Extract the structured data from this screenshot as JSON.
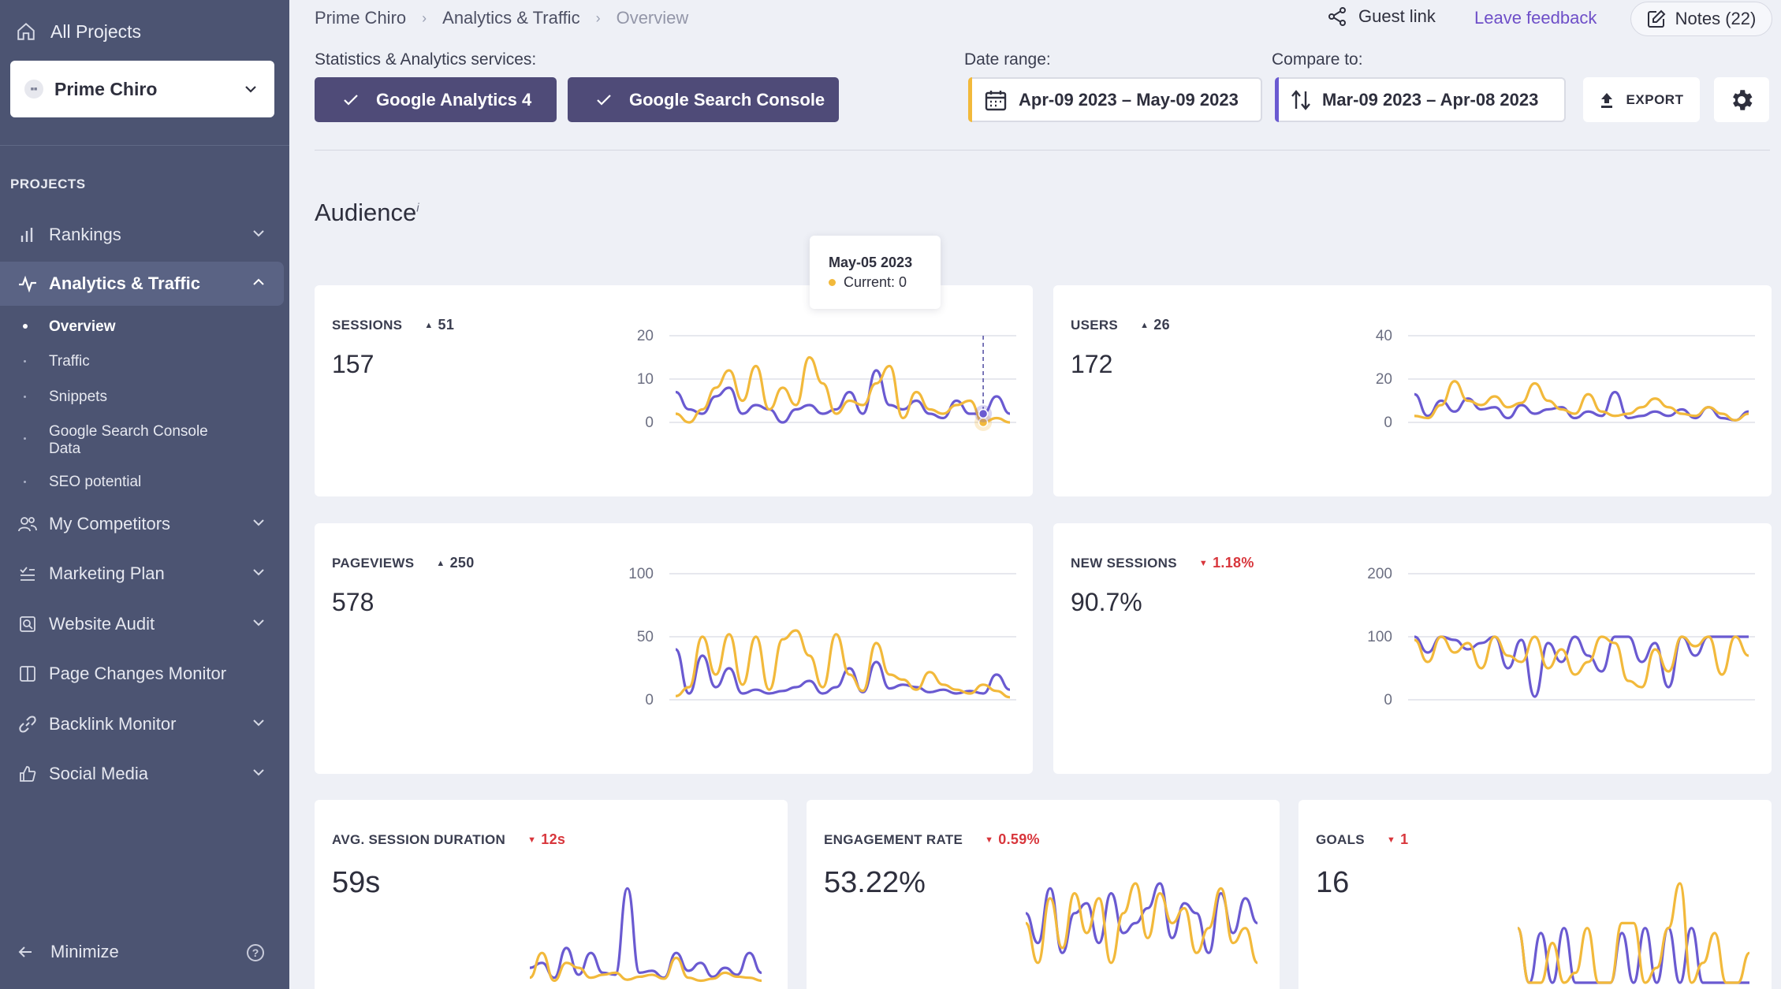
{
  "sidebar": {
    "all_projects": "All Projects",
    "project": "Prime Chiro",
    "section_label": "PROJECTS",
    "nav": {
      "rankings": "Rankings",
      "analytics": "Analytics & Traffic",
      "competitors": "My Competitors",
      "marketing": "Marketing Plan",
      "audit": "Website Audit",
      "page_changes": "Page Changes Monitor",
      "backlinks": "Backlink Monitor",
      "social": "Social Media"
    },
    "sub": {
      "overview": "Overview",
      "traffic": "Traffic",
      "snippets": "Snippets",
      "gsc_line1": "Google Search Console",
      "gsc_line2": "Data",
      "seo": "SEO potential"
    },
    "minimize": "Minimize"
  },
  "header": {
    "breadcrumb": [
      "Prime Chiro",
      "Analytics & Traffic",
      "Overview"
    ],
    "guest_link": "Guest link",
    "feedback": "Leave feedback",
    "notes": "Notes (22)"
  },
  "toolbar": {
    "services_label": "Statistics & Analytics services:",
    "service1": "Google Analytics 4",
    "service2": "Google Search Console",
    "date_label": "Date range:",
    "date_value": "Apr-09 2023 – May-09 2023",
    "compare_label": "Compare to:",
    "compare_value": "Mar-09 2023 – Apr-08 2023",
    "export": "EXPORT"
  },
  "section_title": "Audience",
  "section_info": "i",
  "tooltip": {
    "date": "May-05 2023",
    "current": "Current:  0"
  },
  "colors": {
    "current": "#f2b93b",
    "previous": "#6a5ad1",
    "sidebar": "#4c5472",
    "accent": "#4f4b78"
  },
  "cards": {
    "sessions": {
      "title": "SESSIONS",
      "delta": "51",
      "value": "157"
    },
    "users": {
      "title": "USERS",
      "delta": "26",
      "value": "172"
    },
    "pageviews": {
      "title": "PAGEVIEWS",
      "delta": "250",
      "value": "578"
    },
    "new_sessions": {
      "title": "NEW SESSIONS",
      "delta": "1.18%",
      "value": "90.7%"
    },
    "avg_duration": {
      "title": "AVG. SESSION DURATION",
      "delta": "12s",
      "value": "59s"
    },
    "engagement": {
      "title": "ENGAGEMENT RATE",
      "delta": "0.59%",
      "value": "53.22%"
    },
    "goals": {
      "title": "GOALS",
      "delta": "1",
      "value": "16"
    }
  },
  "chart_data": [
    {
      "id": "sessions",
      "type": "line",
      "y_ticks": [
        "20",
        "10",
        "0"
      ],
      "ylim": [
        0,
        20
      ],
      "hover_marker": 23,
      "series": [
        {
          "role": "current",
          "values": [
            2,
            0,
            3,
            8,
            12,
            5,
            13,
            3,
            8,
            4,
            15,
            9,
            2,
            5,
            4,
            9,
            13,
            1,
            7,
            3,
            2,
            4,
            5,
            0,
            1,
            0
          ]
        },
        {
          "role": "previous",
          "values": [
            7,
            3,
            2,
            6,
            8,
            2,
            4,
            3,
            0,
            3,
            4,
            2,
            3,
            7,
            2,
            12,
            4,
            3,
            5,
            2,
            1,
            5,
            2,
            2,
            6,
            2
          ]
        }
      ]
    },
    {
      "id": "users",
      "type": "line",
      "y_ticks": [
        "40",
        "20",
        "0"
      ],
      "ylim": [
        0,
        40
      ],
      "series": [
        {
          "role": "current",
          "values": [
            3,
            2,
            8,
            19,
            10,
            8,
            12,
            7,
            9,
            18,
            10,
            6,
            4,
            13,
            5,
            3,
            4,
            7,
            11,
            7,
            4,
            3,
            7,
            4,
            1,
            4
          ]
        },
        {
          "role": "previous",
          "values": [
            13,
            3,
            10,
            5,
            11,
            6,
            7,
            2,
            8,
            4,
            6,
            7,
            2,
            5,
            3,
            14,
            2,
            3,
            5,
            3,
            6,
            2,
            7,
            2,
            1,
            5
          ]
        }
      ]
    },
    {
      "id": "pageviews",
      "type": "line",
      "y_ticks": [
        "100",
        "50",
        "0"
      ],
      "ylim": [
        0,
        100
      ],
      "series": [
        {
          "role": "current",
          "values": [
            3,
            10,
            50,
            20,
            52,
            12,
            50,
            8,
            48,
            55,
            35,
            10,
            52,
            20,
            7,
            45,
            20,
            16,
            8,
            22,
            12,
            8,
            5,
            12,
            7,
            2
          ]
        },
        {
          "role": "previous",
          "values": [
            40,
            5,
            35,
            10,
            25,
            5,
            8,
            5,
            7,
            10,
            15,
            5,
            10,
            25,
            6,
            30,
            9,
            12,
            10,
            6,
            8,
            5,
            7,
            5,
            20,
            8
          ]
        }
      ]
    },
    {
      "id": "new_sessions",
      "type": "line",
      "y_ticks": [
        "200",
        "100",
        "0"
      ],
      "ylim": [
        0,
        200
      ],
      "series": [
        {
          "role": "current",
          "values": [
            95,
            60,
            100,
            75,
            90,
            50,
            100,
            70,
            60,
            100,
            50,
            80,
            40,
            60,
            100,
            90,
            30,
            20,
            80,
            45,
            100,
            85,
            100,
            40,
            100,
            70
          ]
        },
        {
          "role": "previous",
          "values": [
            100,
            75,
            100,
            95,
            80,
            90,
            100,
            50,
            95,
            5,
            90,
            60,
            100,
            70,
            45,
            100,
            100,
            60,
            90,
            20,
            100,
            70,
            100,
            100,
            100,
            100
          ]
        }
      ]
    },
    {
      "id": "avg_duration",
      "type": "line",
      "series": [
        {
          "role": "current",
          "values": [
            5,
            30,
            2,
            20,
            15,
            5,
            8,
            10,
            3,
            6,
            8,
            4,
            25,
            5,
            2,
            4,
            10,
            6,
            5,
            2
          ]
        },
        {
          "role": "previous",
          "values": [
            15,
            20,
            5,
            35,
            8,
            30,
            10,
            8,
            95,
            10,
            12,
            5,
            30,
            12,
            20,
            6,
            15,
            8,
            30,
            10
          ]
        }
      ]
    },
    {
      "id": "engagement",
      "type": "line",
      "series": [
        {
          "role": "current",
          "values": [
            60,
            20,
            85,
            35,
            90,
            50,
            85,
            20,
            70,
            100,
            45,
            90,
            60,
            75,
            30,
            55,
            95,
            40,
            55,
            20
          ]
        },
        {
          "role": "previous",
          "values": [
            70,
            40,
            95,
            30,
            70,
            80,
            40,
            90,
            50,
            60,
            75,
            100,
            45,
            80,
            70,
            30,
            90,
            50,
            85,
            60
          ]
        }
      ]
    },
    {
      "id": "goals",
      "type": "line",
      "series": [
        {
          "role": "current",
          "values": [
            55,
            0,
            0,
            40,
            0,
            10,
            55,
            0,
            0,
            60,
            60,
            0,
            15,
            55,
            100,
            0,
            20,
            50,
            0,
            0,
            30
          ]
        },
        {
          "role": "previous",
          "values": [
            55,
            0,
            50,
            0,
            55,
            0,
            0,
            0,
            0,
            50,
            0,
            55,
            0,
            55,
            0,
            55,
            0,
            0,
            0,
            0,
            0
          ]
        }
      ]
    }
  ]
}
